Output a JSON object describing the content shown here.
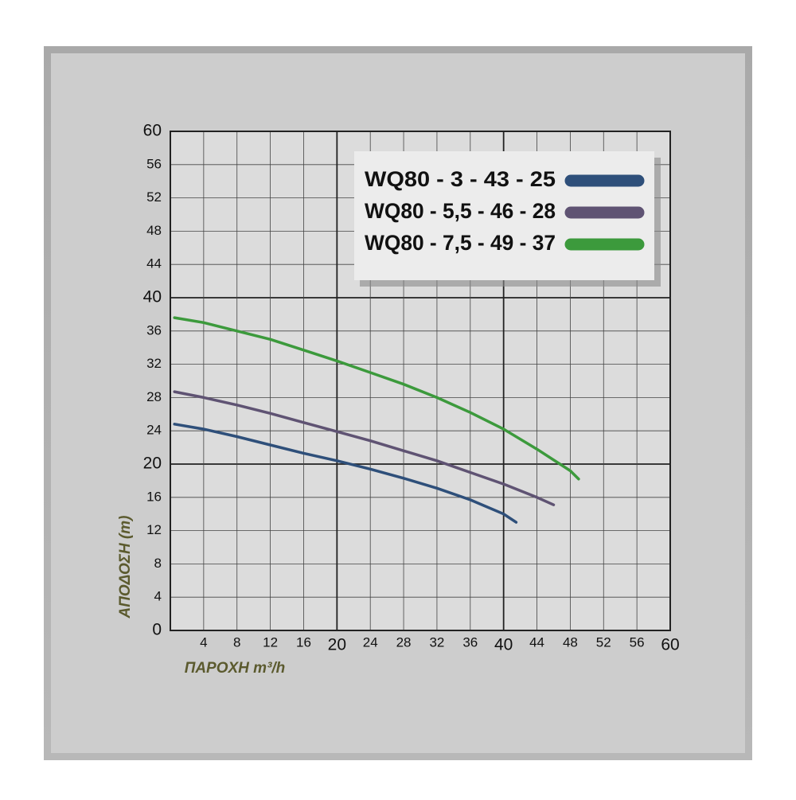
{
  "chart_data": {
    "type": "line",
    "x_label": "ΠΑΡΟΧΗ m³/h",
    "y_label": "ΑΠΟΔΟΣΗ (m)",
    "xlim": [
      0,
      60
    ],
    "ylim": [
      0,
      60
    ],
    "xticks": [
      4,
      8,
      12,
      16,
      20,
      24,
      28,
      32,
      36,
      40,
      44,
      48,
      52,
      56,
      60
    ],
    "yticks": [
      0,
      4,
      8,
      12,
      16,
      20,
      24,
      28,
      32,
      36,
      40,
      44,
      48,
      52,
      56,
      60
    ],
    "grid": true,
    "legend": "upper right",
    "series": [
      {
        "name": "WQ80 - 3 - 43 - 25",
        "color": "#2e4f7a",
        "x": [
          0.5,
          4,
          8,
          12,
          16,
          20,
          24,
          28,
          32,
          36,
          40,
          41.5
        ],
        "values": [
          24.8,
          24.2,
          23.3,
          22.3,
          21.3,
          20.4,
          19.4,
          18.3,
          17.1,
          15.7,
          14,
          13
        ]
      },
      {
        "name": "WQ80 - 5,5 - 46 - 28",
        "color": "#5f5373",
        "x": [
          0.5,
          4,
          8,
          12,
          16,
          20,
          24,
          28,
          32,
          36,
          40,
          44,
          46
        ],
        "values": [
          28.7,
          28,
          27.1,
          26.1,
          25,
          23.9,
          22.8,
          21.6,
          20.4,
          19,
          17.6,
          16,
          15.1
        ]
      },
      {
        "name": "WQ80 - 7,5 - 49 - 37",
        "color": "#3c9a3c",
        "x": [
          0.5,
          4,
          8,
          12,
          16,
          20,
          24,
          28,
          32,
          36,
          40,
          44,
          48,
          49
        ],
        "values": [
          37.6,
          37,
          36,
          35,
          33.7,
          32.4,
          31,
          29.6,
          28,
          26.2,
          24.2,
          21.8,
          19.2,
          18.2
        ]
      }
    ]
  }
}
